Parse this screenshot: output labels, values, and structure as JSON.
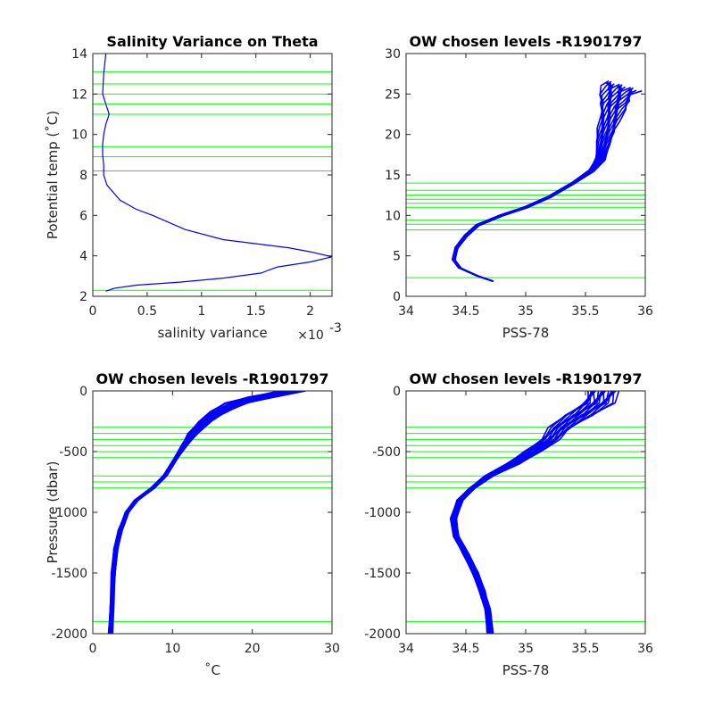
{
  "colors": {
    "profile": "#0000ff",
    "levels": "#00ff00",
    "axis": "#262626"
  },
  "chart_data": [
    {
      "id": "var",
      "type": "line",
      "title": "Salinity Variance on Theta",
      "xlabel": "salinity variance",
      "x_multiplier": "×10",
      "x_multiplier_exp": "-3",
      "ylabel": "Potential temp (˚C)",
      "xlim": [
        0,
        2.2
      ],
      "ylim": [
        2,
        14
      ],
      "reverse_y": false,
      "xticks": [
        0,
        0.5,
        1,
        1.5,
        2
      ],
      "xticklabels": [
        "0",
        "0.5",
        "1",
        "1.5",
        "2"
      ],
      "yticks": [
        2,
        4,
        6,
        8,
        10,
        12,
        14
      ],
      "yticklabels": [
        "2",
        "4",
        "6",
        "8",
        "10",
        "12",
        "14"
      ],
      "levels": [
        2.3,
        8.2,
        8.9,
        9.4,
        11.0,
        11.5,
        12.0,
        12.5,
        13.1,
        14.0
      ],
      "series": [
        {
          "x": [
            0.12,
            0.2,
            0.4,
            0.8,
            1.2,
            1.55,
            1.62,
            1.7,
            2.0,
            2.2,
            2.0,
            1.8,
            1.2,
            0.85,
            0.55,
            0.4,
            0.25,
            0.13,
            0.1,
            0.1,
            0.09,
            0.09,
            0.1,
            0.12,
            0.15,
            0.12,
            0.09,
            0.1,
            0.12
          ],
          "y": [
            2.25,
            2.4,
            2.55,
            2.7,
            2.9,
            3.15,
            3.3,
            3.45,
            3.7,
            3.95,
            4.2,
            4.4,
            4.8,
            5.3,
            6.0,
            6.3,
            6.75,
            7.5,
            8.0,
            8.5,
            9.0,
            9.5,
            10.0,
            10.5,
            11.0,
            11.5,
            12.0,
            13.0,
            14.0
          ]
        }
      ]
    },
    {
      "id": "ts",
      "type": "line",
      "title": "OW chosen levels -R1901797",
      "xlabel": "PSS-78",
      "ylabel": "",
      "xlim": [
        34,
        36
      ],
      "ylim": [
        0,
        30
      ],
      "reverse_y": false,
      "xticks": [
        34,
        34.5,
        35,
        35.5,
        36
      ],
      "xticklabels": [
        "34",
        "34.5",
        "35",
        "35.5",
        "36"
      ],
      "yticks": [
        0,
        5,
        10,
        15,
        20,
        25,
        30
      ],
      "yticklabels": [
        "0",
        "5",
        "10",
        "15",
        "20",
        "25",
        "30"
      ],
      "levels": [
        2.3,
        8.2,
        8.9,
        9.4,
        11.0,
        11.5,
        12.0,
        12.5,
        13.1,
        14.0
      ],
      "series": [
        {
          "x": [
            34.72,
            34.6,
            34.45,
            34.4,
            34.42,
            34.5,
            34.6,
            34.8,
            35.0,
            35.2,
            35.4,
            35.55,
            35.62,
            35.65,
            35.68,
            35.7,
            35.72,
            35.75,
            35.78,
            35.8
          ],
          "y": [
            1.9,
            2.5,
            3.5,
            4.5,
            6.0,
            7.5,
            8.8,
            10.0,
            11.0,
            12.3,
            14.0,
            15.5,
            17.0,
            19.0,
            20.5,
            22.0,
            23.5,
            24.5,
            25.5,
            26.0
          ]
        }
      ]
    },
    {
      "id": "pt",
      "type": "line",
      "title": "OW chosen levels -R1901797",
      "xlabel": "˚C",
      "ylabel": "Pressure (dbar)",
      "xlim": [
        0,
        30
      ],
      "ylim": [
        -2000,
        0
      ],
      "reverse_y": true,
      "xticks": [
        0,
        10,
        20,
        30
      ],
      "xticklabels": [
        "0",
        "10",
        "20",
        "30"
      ],
      "yticks": [
        0,
        -500,
        -1000,
        -1500,
        -2000
      ],
      "yticklabels": [
        "0",
        "-500",
        "-1000",
        "-1500",
        "-2000"
      ],
      "levels": [
        -300,
        -350,
        -400,
        -450,
        -500,
        -550,
        -700,
        -750,
        -800,
        -1900
      ],
      "series": [
        {
          "x": [
            25.0,
            21.0,
            18.0,
            16.0,
            14.0,
            12.5,
            11.5,
            10.5,
            9.0,
            7.5,
            5.5,
            4.3,
            3.4,
            2.9,
            2.6,
            2.4,
            2.2
          ],
          "y": [
            0,
            -50,
            -100,
            -170,
            -250,
            -350,
            -450,
            -550,
            -700,
            -800,
            -900,
            -1000,
            -1150,
            -1300,
            -1500,
            -1750,
            -2000
          ]
        }
      ]
    },
    {
      "id": "ps",
      "type": "line",
      "title": "OW chosen levels -R1901797",
      "xlabel": "PSS-78",
      "ylabel": "",
      "xlim": [
        34,
        36
      ],
      "ylim": [
        -2000,
        0
      ],
      "reverse_y": true,
      "xticks": [
        34,
        34.5,
        35,
        35.5,
        36
      ],
      "xticklabels": [
        "34",
        "34.5",
        "35",
        "35.5",
        "36"
      ],
      "yticks": [
        0,
        -500,
        -1000,
        -1500,
        -2000
      ],
      "yticklabels": [
        "0",
        "-500",
        "-1000",
        "-1500",
        "-2000"
      ],
      "levels": [
        -300,
        -350,
        -400,
        -450,
        -500,
        -550,
        -700,
        -750,
        -800,
        -1900
      ],
      "series": [
        {
          "x": [
            35.65,
            35.6,
            35.45,
            35.3,
            35.2,
            35.05,
            34.9,
            34.7,
            34.55,
            34.45,
            34.4,
            34.42,
            34.5,
            34.58,
            34.64,
            34.68,
            34.7
          ],
          "y": [
            0,
            -100,
            -200,
            -300,
            -400,
            -500,
            -600,
            -700,
            -800,
            -900,
            -1050,
            -1200,
            -1350,
            -1500,
            -1650,
            -1800,
            -2000
          ]
        }
      ]
    }
  ]
}
